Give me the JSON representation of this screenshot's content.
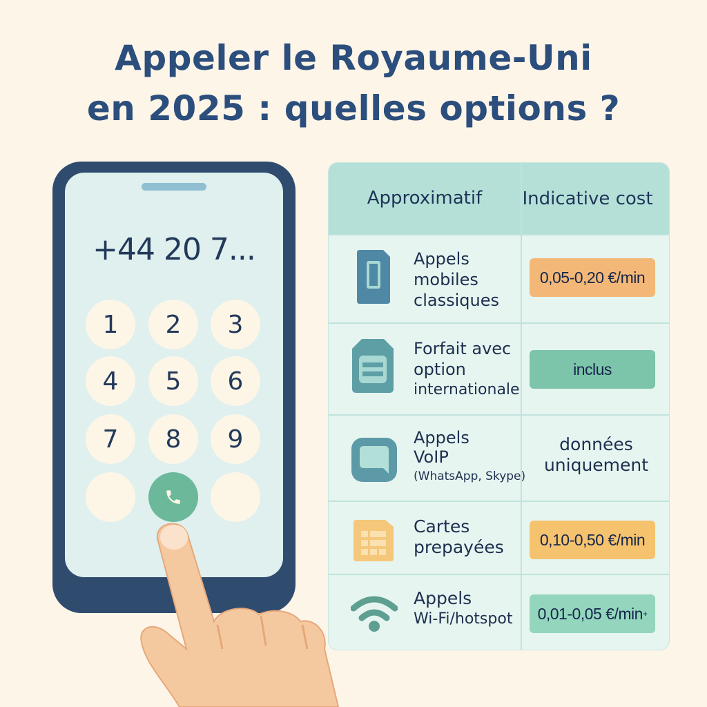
{
  "title": {
    "line1": "Appeler le Royaume-Uni",
    "line2": "en 2025 : quelles options ?"
  },
  "phone": {
    "number": "+44 20 7...",
    "keys": [
      "1",
      "2",
      "3",
      "4",
      "5",
      "6",
      "7",
      "8",
      "9"
    ],
    "call_icon": "phone-icon"
  },
  "table": {
    "headers": [
      "Approximatif",
      "Indicative cost"
    ],
    "rows": [
      {
        "icon": "sim-card-icon",
        "label": [
          "Appels",
          "mobiles",
          "classiques"
        ],
        "cost": "0,05-0,20 €/min",
        "cost_color": "#f3b877"
      },
      {
        "icon": "sim-chip-icon",
        "label": [
          "Forfait avec",
          "option",
          "internationale"
        ],
        "cost": "inclus",
        "cost_color": "#7cc4aa"
      },
      {
        "icon": "chat-bubble-icon",
        "label": [
          "Appels",
          "VoIP",
          "(WhatsApp, Skype)"
        ],
        "cost": [
          "données",
          "uniquement"
        ]
      },
      {
        "icon": "prepaid-card-icon",
        "label": [
          "Cartes",
          "prepayées"
        ],
        "cost": "0,10-0,50 €/min",
        "cost_color": "#f5c36e"
      },
      {
        "icon": "wifi-icon",
        "label": [
          "Appels",
          "Wi-Fi/hotspot"
        ],
        "cost": "0,01-0,05 €/min",
        "cost_suffix": "+",
        "cost_color": "#93d6bd"
      }
    ]
  },
  "colors": {
    "title": "#2b4e7c",
    "phone": "#2f4b6e",
    "screen": "#dff0ef",
    "table_header": "#b4e0d8",
    "table_bg": "#e6f5f0"
  }
}
